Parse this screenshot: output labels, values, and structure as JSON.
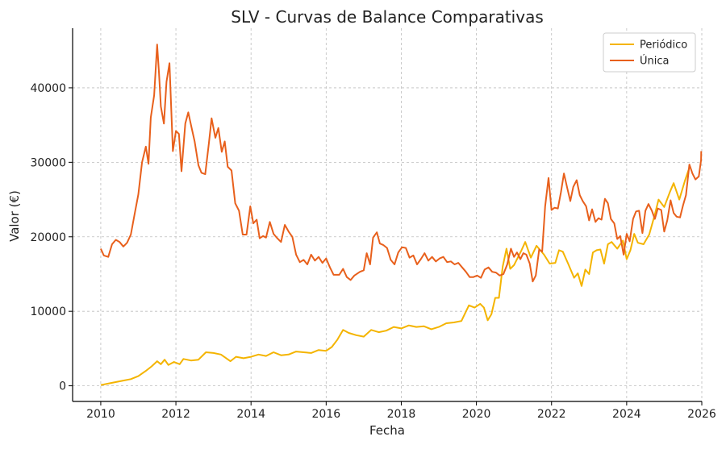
{
  "chart_data": {
    "type": "line",
    "title": "SLV - Curvas de Balance Comparativas",
    "xlabel": "Fecha",
    "ylabel": "Valor (€)",
    "xlim": [
      2009.25,
      2026.0
    ],
    "ylim": [
      -2100,
      48000
    ],
    "x_ticks": [
      2010,
      2012,
      2014,
      2016,
      2018,
      2020,
      2022,
      2024,
      2026
    ],
    "y_ticks": [
      0,
      10000,
      20000,
      30000,
      40000
    ],
    "grid": true,
    "legend_position": "top-right",
    "series": [
      {
        "name": "Periódico",
        "color": "#f4b400",
        "points": [
          [
            2010.0,
            100
          ],
          [
            2010.3,
            400
          ],
          [
            2010.6,
            700
          ],
          [
            2010.8,
            900
          ],
          [
            2011.0,
            1300
          ],
          [
            2011.2,
            2000
          ],
          [
            2011.35,
            2600
          ],
          [
            2011.5,
            3300
          ],
          [
            2011.6,
            2900
          ],
          [
            2011.7,
            3500
          ],
          [
            2011.8,
            2800
          ],
          [
            2011.95,
            3200
          ],
          [
            2012.1,
            2900
          ],
          [
            2012.2,
            3600
          ],
          [
            2012.4,
            3400
          ],
          [
            2012.6,
            3500
          ],
          [
            2012.8,
            4500
          ],
          [
            2013.0,
            4400
          ],
          [
            2013.2,
            4200
          ],
          [
            2013.45,
            3300
          ],
          [
            2013.6,
            3900
          ],
          [
            2013.8,
            3700
          ],
          [
            2014.0,
            3900
          ],
          [
            2014.2,
            4200
          ],
          [
            2014.4,
            4000
          ],
          [
            2014.6,
            4500
          ],
          [
            2014.8,
            4100
          ],
          [
            2015.0,
            4200
          ],
          [
            2015.2,
            4600
          ],
          [
            2015.4,
            4500
          ],
          [
            2015.6,
            4400
          ],
          [
            2015.8,
            4800
          ],
          [
            2016.0,
            4700
          ],
          [
            2016.15,
            5200
          ],
          [
            2016.3,
            6200
          ],
          [
            2016.45,
            7500
          ],
          [
            2016.6,
            7100
          ],
          [
            2016.8,
            6800
          ],
          [
            2017.0,
            6600
          ],
          [
            2017.2,
            7500
          ],
          [
            2017.4,
            7200
          ],
          [
            2017.6,
            7400
          ],
          [
            2017.8,
            7900
          ],
          [
            2018.0,
            7700
          ],
          [
            2018.2,
            8100
          ],
          [
            2018.4,
            7900
          ],
          [
            2018.6,
            8000
          ],
          [
            2018.8,
            7600
          ],
          [
            2019.0,
            7900
          ],
          [
            2019.2,
            8400
          ],
          [
            2019.4,
            8500
          ],
          [
            2019.6,
            8700
          ],
          [
            2019.8,
            10800
          ],
          [
            2019.95,
            10500
          ],
          [
            2020.1,
            11000
          ],
          [
            2020.2,
            10500
          ],
          [
            2020.3,
            8800
          ],
          [
            2020.4,
            9600
          ],
          [
            2020.5,
            11800
          ],
          [
            2020.6,
            11800
          ],
          [
            2020.7,
            16000
          ],
          [
            2020.8,
            18400
          ],
          [
            2020.9,
            15700
          ],
          [
            2021.0,
            16200
          ],
          [
            2021.2,
            18200
          ],
          [
            2021.3,
            19300
          ],
          [
            2021.45,
            17200
          ],
          [
            2021.6,
            18800
          ],
          [
            2021.8,
            17600
          ],
          [
            2021.95,
            16400
          ],
          [
            2022.1,
            16500
          ],
          [
            2022.2,
            18200
          ],
          [
            2022.3,
            18000
          ],
          [
            2022.45,
            16300
          ],
          [
            2022.6,
            14500
          ],
          [
            2022.7,
            15100
          ],
          [
            2022.8,
            13400
          ],
          [
            2022.9,
            15600
          ],
          [
            2023.0,
            15000
          ],
          [
            2023.1,
            17900
          ],
          [
            2023.2,
            18200
          ],
          [
            2023.3,
            18300
          ],
          [
            2023.4,
            16400
          ],
          [
            2023.5,
            19000
          ],
          [
            2023.6,
            19300
          ],
          [
            2023.75,
            18400
          ],
          [
            2023.9,
            19500
          ],
          [
            2024.0,
            17000
          ],
          [
            2024.1,
            18200
          ],
          [
            2024.2,
            20400
          ],
          [
            2024.3,
            19200
          ],
          [
            2024.45,
            19000
          ],
          [
            2024.6,
            20300
          ],
          [
            2024.75,
            23000
          ],
          [
            2024.85,
            25000
          ],
          [
            2025.0,
            24000
          ],
          [
            2025.15,
            26000
          ],
          [
            2025.25,
            27200
          ],
          [
            2025.4,
            25000
          ],
          [
            2025.55,
            27500
          ],
          [
            2025.65,
            29000
          ]
        ]
      },
      {
        "name": "Única",
        "color": "#e8601c",
        "points": [
          [
            2010.0,
            18400
          ],
          [
            2010.08,
            17500
          ],
          [
            2010.2,
            17300
          ],
          [
            2010.3,
            19000
          ],
          [
            2010.4,
            19600
          ],
          [
            2010.5,
            19300
          ],
          [
            2010.6,
            18700
          ],
          [
            2010.7,
            19200
          ],
          [
            2010.8,
            20300
          ],
          [
            2010.9,
            23000
          ],
          [
            2011.0,
            25700
          ],
          [
            2011.1,
            30000
          ],
          [
            2011.2,
            32100
          ],
          [
            2011.27,
            29800
          ],
          [
            2011.33,
            36000
          ],
          [
            2011.42,
            39000
          ],
          [
            2011.5,
            45800
          ],
          [
            2011.55,
            42000
          ],
          [
            2011.6,
            37500
          ],
          [
            2011.68,
            35200
          ],
          [
            2011.75,
            40800
          ],
          [
            2011.83,
            43300
          ],
          [
            2011.92,
            31500
          ],
          [
            2012.0,
            34200
          ],
          [
            2012.08,
            33800
          ],
          [
            2012.15,
            28800
          ],
          [
            2012.25,
            35200
          ],
          [
            2012.33,
            36700
          ],
          [
            2012.42,
            34600
          ],
          [
            2012.5,
            32800
          ],
          [
            2012.6,
            29600
          ],
          [
            2012.68,
            28600
          ],
          [
            2012.78,
            28400
          ],
          [
            2012.88,
            32600
          ],
          [
            2012.95,
            35900
          ],
          [
            2013.05,
            33300
          ],
          [
            2013.13,
            34600
          ],
          [
            2013.22,
            31400
          ],
          [
            2013.3,
            32800
          ],
          [
            2013.38,
            29400
          ],
          [
            2013.48,
            28900
          ],
          [
            2013.58,
            24500
          ],
          [
            2013.68,
            23500
          ],
          [
            2013.78,
            20300
          ],
          [
            2013.88,
            20300
          ],
          [
            2013.98,
            24100
          ],
          [
            2014.06,
            21800
          ],
          [
            2014.15,
            22300
          ],
          [
            2014.23,
            19800
          ],
          [
            2014.32,
            20100
          ],
          [
            2014.4,
            19900
          ],
          [
            2014.5,
            22000
          ],
          [
            2014.6,
            20400
          ],
          [
            2014.7,
            19800
          ],
          [
            2014.8,
            19300
          ],
          [
            2014.9,
            21600
          ],
          [
            2015.0,
            20700
          ],
          [
            2015.1,
            20000
          ],
          [
            2015.2,
            17600
          ],
          [
            2015.3,
            16600
          ],
          [
            2015.4,
            16900
          ],
          [
            2015.5,
            16300
          ],
          [
            2015.6,
            17600
          ],
          [
            2015.7,
            16800
          ],
          [
            2015.8,
            17300
          ],
          [
            2015.9,
            16500
          ],
          [
            2016.0,
            17100
          ],
          [
            2016.1,
            15900
          ],
          [
            2016.2,
            14900
          ],
          [
            2016.35,
            14900
          ],
          [
            2016.45,
            15700
          ],
          [
            2016.55,
            14600
          ],
          [
            2016.65,
            14200
          ],
          [
            2016.75,
            14800
          ],
          [
            2016.9,
            15300
          ],
          [
            2017.0,
            15500
          ],
          [
            2017.08,
            17800
          ],
          [
            2017.17,
            16300
          ],
          [
            2017.25,
            19900
          ],
          [
            2017.35,
            20600
          ],
          [
            2017.43,
            19100
          ],
          [
            2017.52,
            18900
          ],
          [
            2017.62,
            18500
          ],
          [
            2017.72,
            16900
          ],
          [
            2017.82,
            16300
          ],
          [
            2017.92,
            17900
          ],
          [
            2018.02,
            18600
          ],
          [
            2018.12,
            18500
          ],
          [
            2018.22,
            17200
          ],
          [
            2018.32,
            17500
          ],
          [
            2018.42,
            16300
          ],
          [
            2018.52,
            17000
          ],
          [
            2018.62,
            17800
          ],
          [
            2018.72,
            16800
          ],
          [
            2018.82,
            17300
          ],
          [
            2018.92,
            16700
          ],
          [
            2019.02,
            17100
          ],
          [
            2019.12,
            17300
          ],
          [
            2019.22,
            16600
          ],
          [
            2019.32,
            16700
          ],
          [
            2019.42,
            16300
          ],
          [
            2019.52,
            16500
          ],
          [
            2019.62,
            15900
          ],
          [
            2019.72,
            15300
          ],
          [
            2019.82,
            14600
          ],
          [
            2019.92,
            14600
          ],
          [
            2020.02,
            14800
          ],
          [
            2020.12,
            14500
          ],
          [
            2020.22,
            15600
          ],
          [
            2020.32,
            15900
          ],
          [
            2020.42,
            15300
          ],
          [
            2020.52,
            15200
          ],
          [
            2020.62,
            14800
          ],
          [
            2020.72,
            15000
          ],
          [
            2020.82,
            16300
          ],
          [
            2020.92,
            18400
          ],
          [
            2021.0,
            17300
          ],
          [
            2021.08,
            17900
          ],
          [
            2021.17,
            17000
          ],
          [
            2021.25,
            17800
          ],
          [
            2021.33,
            17600
          ],
          [
            2021.42,
            16400
          ],
          [
            2021.5,
            14000
          ],
          [
            2021.58,
            14800
          ],
          [
            2021.67,
            18300
          ],
          [
            2021.75,
            18000
          ],
          [
            2021.83,
            24100
          ],
          [
            2021.92,
            27900
          ],
          [
            2022.0,
            23600
          ],
          [
            2022.08,
            23900
          ],
          [
            2022.17,
            23800
          ],
          [
            2022.25,
            26000
          ],
          [
            2022.33,
            28500
          ],
          [
            2022.42,
            26500
          ],
          [
            2022.5,
            24800
          ],
          [
            2022.58,
            26700
          ],
          [
            2022.67,
            27600
          ],
          [
            2022.75,
            25600
          ],
          [
            2022.83,
            24800
          ],
          [
            2022.92,
            24100
          ],
          [
            2023.0,
            22200
          ],
          [
            2023.08,
            23700
          ],
          [
            2023.17,
            22000
          ],
          [
            2023.25,
            22500
          ],
          [
            2023.33,
            22300
          ],
          [
            2023.42,
            25100
          ],
          [
            2023.5,
            24500
          ],
          [
            2023.58,
            22400
          ],
          [
            2023.67,
            21800
          ],
          [
            2023.75,
            19700
          ],
          [
            2023.83,
            20100
          ],
          [
            2023.92,
            17600
          ],
          [
            2024.0,
            20400
          ],
          [
            2024.08,
            19400
          ],
          [
            2024.17,
            22400
          ],
          [
            2024.25,
            23400
          ],
          [
            2024.33,
            23500
          ],
          [
            2024.42,
            20500
          ],
          [
            2024.5,
            23500
          ],
          [
            2024.58,
            24400
          ],
          [
            2024.67,
            23500
          ],
          [
            2024.75,
            22400
          ],
          [
            2024.83,
            23800
          ],
          [
            2024.92,
            23600
          ],
          [
            2025.0,
            20700
          ],
          [
            2025.08,
            22200
          ],
          [
            2025.17,
            24900
          ],
          [
            2025.25,
            23200
          ],
          [
            2025.33,
            22700
          ],
          [
            2025.42,
            22600
          ],
          [
            2025.5,
            24200
          ],
          [
            2025.58,
            25600
          ],
          [
            2025.67,
            29700
          ],
          [
            2025.75,
            28500
          ],
          [
            2025.83,
            27700
          ],
          [
            2025.92,
            28100
          ],
          [
            2025.98,
            30300
          ],
          [
            2025.985,
            31500
          ]
        ]
      }
    ]
  }
}
